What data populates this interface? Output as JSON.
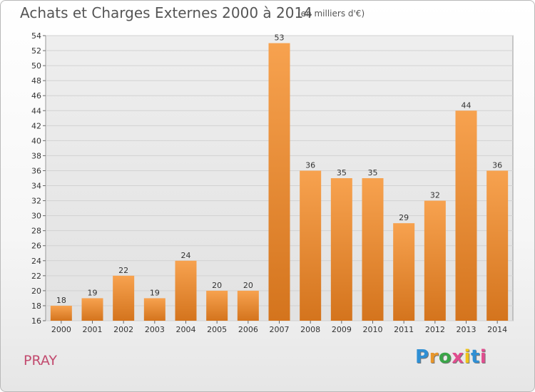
{
  "header": {
    "title": "Achats et Charges Externes 2000 à 2014",
    "subtitle": "(en milliers d'€)"
  },
  "footer": {
    "place": "PRAY",
    "logo_letters": [
      "P",
      "r",
      "o",
      "x",
      "i",
      "t",
      "i"
    ],
    "logo_colors": [
      "#2f8fd4",
      "#e8962a",
      "#3aa548",
      "#e14d8f",
      "#f0c419",
      "#2f8fd4",
      "#e14d8f"
    ]
  },
  "chart_data": {
    "type": "bar",
    "title": "Achats et Charges Externes 2000 à 2014",
    "subtitle": "(en milliers d'€)",
    "categories": [
      "2000",
      "2001",
      "2002",
      "2003",
      "2004",
      "2005",
      "2006",
      "2007",
      "2008",
      "2009",
      "2010",
      "2011",
      "2012",
      "2013",
      "2014"
    ],
    "values": [
      18,
      19,
      22,
      19,
      24,
      20,
      20,
      53,
      36,
      35,
      35,
      29,
      32,
      44,
      36
    ],
    "ylim": [
      16,
      54
    ],
    "yticks": [
      16,
      18,
      20,
      22,
      24,
      26,
      28,
      30,
      32,
      34,
      36,
      38,
      40,
      42,
      44,
      46,
      48,
      50,
      52,
      54
    ],
    "grid": true,
    "bar_color_top": "#f7a24f",
    "bar_color_bottom": "#d4741d"
  }
}
